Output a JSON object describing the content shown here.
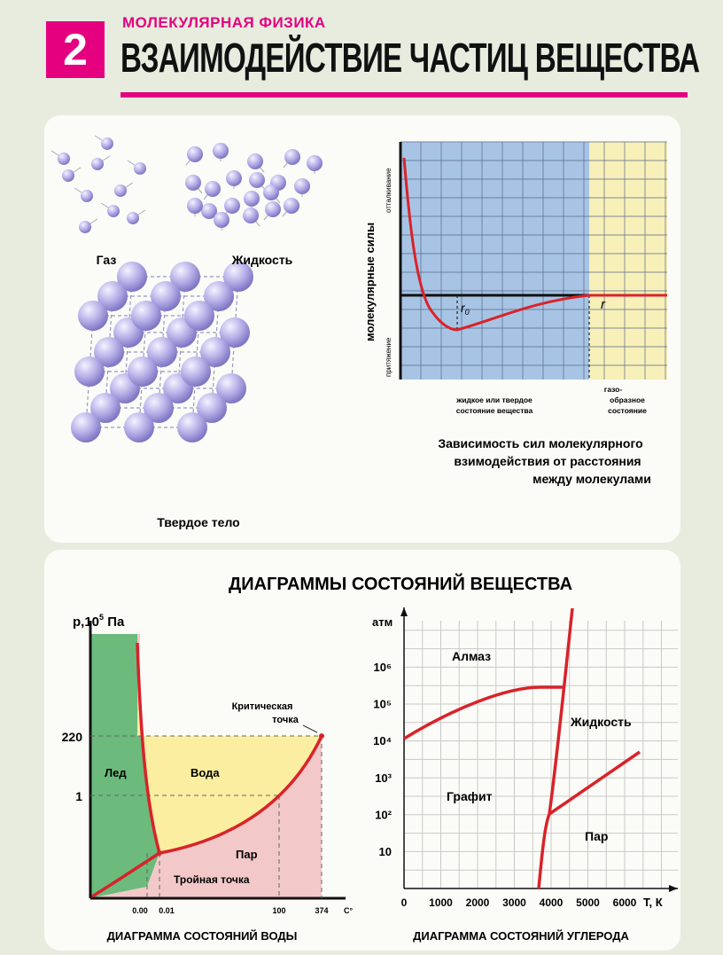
{
  "header": {
    "number": "2",
    "subject": "МОЛЕКУЛЯРНАЯ ФИЗИКА",
    "title": "ВЗАИМОДЕЙСТВИЕ ЧАСТИЦ ВЕЩЕСТВА"
  },
  "states": {
    "gas": "Газ",
    "liquid": "Жидкость",
    "solid": "Твердое тело"
  },
  "force_chart": {
    "ylabel": "молекулярные силы",
    "repulsion": "отталкивание",
    "attraction": "притяжение",
    "r0": "r",
    "r0_sub": "0",
    "r": "r",
    "zone1_line1": "жидкое или твердое",
    "zone1_line2": "состояние вещества",
    "zone2_line1": "газо-",
    "zone2_line2": "образное",
    "zone2_line3": "состояние",
    "caption_line1": "Зависимость сил молекулярного",
    "caption_line2": "взимодействия от расстояния",
    "caption_line3": "между молекулами"
  },
  "diagrams": {
    "title": "ДИАГРАММЫ СОСТОЯНИЙ ВЕЩЕСТВА"
  },
  "water": {
    "ylabel": "p,10",
    "ylabel_exp": "5",
    "ylabel_unit": " Па",
    "tick_220": "220",
    "tick_1": "1",
    "ice": "Лед",
    "water": "Вода",
    "vapor": "Пар",
    "critical_line1": "Критическая",
    "critical_line2": "точка",
    "triple": "Тройная точка",
    "x_000": "0.00",
    "x_001": "0.01",
    "x_100": "100",
    "x_374": "374",
    "x_unit": "C°",
    "caption": "ДИАГРАММА СОСТОЯНИЙ ВОДЫ"
  },
  "carbon": {
    "ylabel": "атм",
    "y_ticks": [
      "10⁶",
      "10⁵",
      "10⁴",
      "10³",
      "10²",
      "10"
    ],
    "x_ticks": [
      "0",
      "1000",
      "2000",
      "3000",
      "4000",
      "5000",
      "6000"
    ],
    "x_unit": "T, К",
    "diamond": "Алмаз",
    "liquid": "Жидкость",
    "graphite": "Графит",
    "vapor": "Пар",
    "caption": "ДИАГРАММА СОСТОЯНИЙ УГЛЕРОДА"
  },
  "chart_data": [
    {
      "type": "line",
      "title": "Зависимость сил молекулярного взимодействия от расстояния между молекулами",
      "ylabel": "молекулярные силы",
      "xlabel": "r",
      "annotations": [
        "r0",
        "отталкивание",
        "притяжение",
        "жидкое или твердое состояние вещества",
        "газо- образное состояние"
      ]
    },
    {
      "type": "line",
      "title": "ДИАГРАММА СОСТОЯНИЙ ВОДЫ",
      "ylabel": "p,10^5 Па",
      "xlabel": "C°",
      "x_ticks": [
        0.0,
        0.01,
        100,
        374
      ],
      "y_ticks": [
        1,
        220
      ],
      "points": {
        "triple_point": [
          0.01,
          0.006
        ],
        "critical_point": [
          374,
          220
        ]
      },
      "regions": [
        "Лед",
        "Вода",
        "Пар"
      ]
    },
    {
      "type": "line",
      "title": "ДИАГРАММА СОСТОЯНИЙ УГЛЕРОДА",
      "ylabel": "атм",
      "xlabel": "T, К",
      "xlim": [
        0,
        6500
      ],
      "x_ticks": [
        0,
        1000,
        2000,
        3000,
        4000,
        5000,
        6000
      ],
      "y_ticks": [
        "10",
        "10²",
        "10³",
        "10⁴",
        "10⁵",
        "10⁶"
      ],
      "regions": [
        "Алмаз",
        "Жидкость",
        "Графит",
        "Пар"
      ]
    }
  ],
  "colors": {
    "accent": "#e4007f",
    "curve": "#d8232a",
    "liquid_zone": "#a8c4e4",
    "gas_zone": "#f7f0b8",
    "ice": "#6cbb7c",
    "water_area": "#fbeea0",
    "vapor_area": "#f3c8c8",
    "molecule": "#b7b0e8"
  }
}
